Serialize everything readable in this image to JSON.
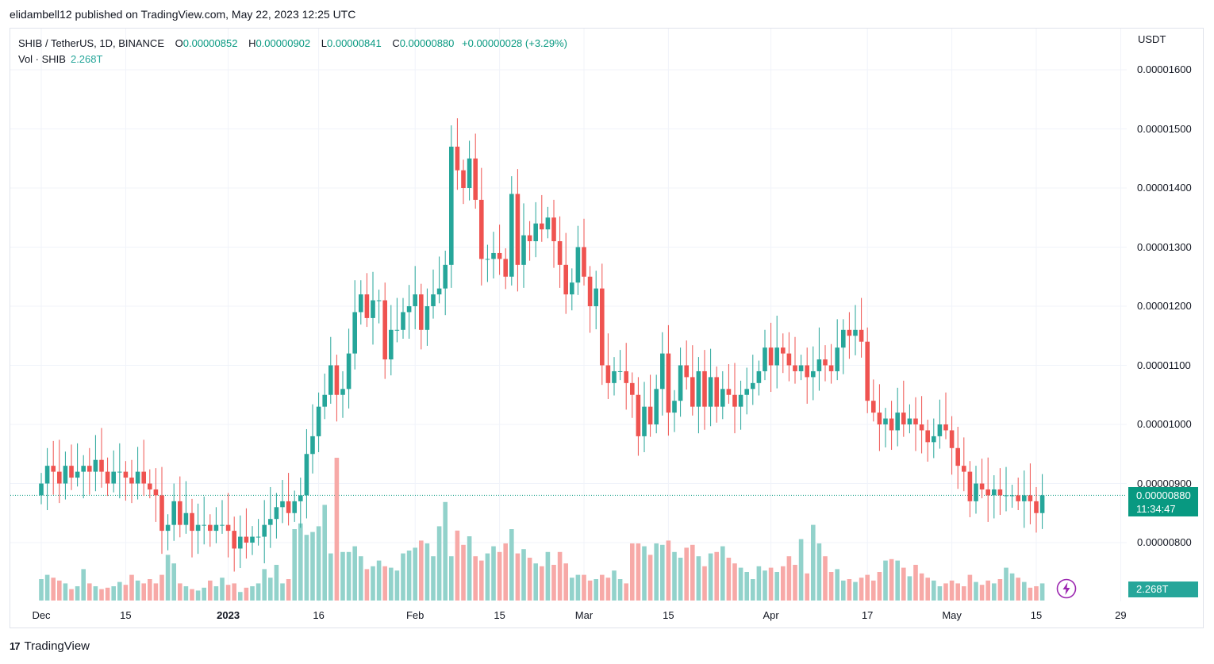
{
  "publish_line": "elidambell12 published on TradingView.com, May 22, 2023 12:25 UTC",
  "legend": {
    "symbol": "SHIB / TetherUS, 1D, BINANCE",
    "open_label": "O",
    "open": "0.00000852",
    "high_label": "H",
    "high": "0.00000902",
    "low_label": "L",
    "low": "0.00000841",
    "close_label": "C",
    "close": "0.00000880",
    "change": "+0.00000028 (+3.29%)",
    "vol_label": "Vol · SHIB",
    "vol_value": "2.268T"
  },
  "axis": {
    "unit": "USDT",
    "last_price": "0.00000880",
    "countdown": "11:34:47",
    "last_volume": "2.268T"
  },
  "brand": {
    "logo_text": "17",
    "name": "TradingView"
  },
  "colors": {
    "up": "#26a69a",
    "down": "#ef5350",
    "vol_up": "#92d2cb",
    "vol_down": "#f7a9a7",
    "grid": "#f0f3fa"
  },
  "icons": {
    "flash": "flash-icon",
    "logo": "tradingview-logo-icon"
  },
  "chart_data": {
    "type": "candlestick",
    "title": "SHIB / TetherUS, 1D, BINANCE",
    "ylabel": "USDT",
    "ylim": [
      7.3e-06,
      1.62e-05
    ],
    "y_ticks": [
      "0.00000800",
      "0.00000900",
      "0.00001000",
      "0.00001100",
      "0.00001200",
      "0.00001300",
      "0.00001400",
      "0.00001500",
      "0.00001600"
    ],
    "x_ticks": [
      {
        "label": "Dec",
        "day": 0,
        "bold": false
      },
      {
        "label": "15",
        "day": 14,
        "bold": false
      },
      {
        "label": "2023",
        "day": 31,
        "bold": true
      },
      {
        "label": "16",
        "day": 46,
        "bold": false
      },
      {
        "label": "Feb",
        "day": 62,
        "bold": false
      },
      {
        "label": "15",
        "day": 76,
        "bold": false
      },
      {
        "label": "Mar",
        "day": 90,
        "bold": false
      },
      {
        "label": "15",
        "day": 104,
        "bold": false
      },
      {
        "label": "Apr",
        "day": 121,
        "bold": false
      },
      {
        "label": "17",
        "day": 137,
        "bold": false
      },
      {
        "label": "May",
        "day": 151,
        "bold": false
      },
      {
        "label": "15",
        "day": 165,
        "bold": false
      },
      {
        "label": "29",
        "day": 179,
        "bold": false
      }
    ],
    "x_start": "2022-11-26",
    "last_price_line": 8.8e-06,
    "closes": [
      9e-06,
      9.3e-06,
      9.2e-06,
      9e-06,
      9.3e-06,
      9.1e-06,
      9.2e-06,
      9.3e-06,
      9.2e-06,
      9.4e-06,
      9.2e-06,
      9e-06,
      9.2e-06,
      9.2e-06,
      9.1e-06,
      9e-06,
      9.2e-06,
      9e-06,
      8.9e-06,
      8.8e-06,
      8.2e-06,
      8.3e-06,
      8.7e-06,
      8.3e-06,
      8.5e-06,
      8.2e-06,
      8.3e-06,
      8.3e-06,
      8.2e-06,
      8.3e-06,
      8.3e-06,
      8.2e-06,
      7.9e-06,
      8.1e-06,
      8e-06,
      8.1e-06,
      8.1e-06,
      8.3e-06,
      8.4e-06,
      8.6e-06,
      8.7e-06,
      8.5e-06,
      8.7e-06,
      8.8e-06,
      9.5e-06,
      9.8e-06,
      1.03e-05,
      1.05e-05,
      1.1e-05,
      1.05e-05,
      1.06e-05,
      1.12e-05,
      1.19e-05,
      1.22e-05,
      1.18e-05,
      1.21e-05,
      1.21e-05,
      1.11e-05,
      1.16e-05,
      1.16e-05,
      1.19e-05,
      1.2e-05,
      1.22e-05,
      1.16e-05,
      1.2e-05,
      1.22e-05,
      1.23e-05,
      1.27e-05,
      1.47e-05,
      1.43e-05,
      1.4e-05,
      1.45e-05,
      1.38e-05,
      1.28e-05,
      1.28e-05,
      1.29e-05,
      1.28e-05,
      1.25e-05,
      1.39e-05,
      1.27e-05,
      1.32e-05,
      1.31e-05,
      1.34e-05,
      1.33e-05,
      1.35e-05,
      1.31e-05,
      1.27e-05,
      1.22e-05,
      1.24e-05,
      1.3e-05,
      1.25e-05,
      1.2e-05,
      1.23e-05,
      1.1e-05,
      1.07e-05,
      1.09e-05,
      1.09e-05,
      1.07e-05,
      1.05e-05,
      9.8e-06,
      1.03e-05,
      1e-05,
      1.06e-05,
      1.12e-05,
      1.02e-05,
      1.04e-05,
      1.1e-05,
      1.08e-05,
      1.03e-05,
      1.09e-05,
      1.03e-05,
      1.08e-05,
      1.03e-05,
      1.06e-05,
      1.05e-05,
      1.03e-05,
      1.05e-05,
      1.06e-05,
      1.07e-05,
      1.09e-05,
      1.13e-05,
      1.1e-05,
      1.13e-05,
      1.12e-05,
      1.1e-05,
      1.09e-05,
      1.1e-05,
      1.08e-05,
      1.09e-05,
      1.11e-05,
      1.1e-05,
      1.09e-05,
      1.13e-05,
      1.16e-05,
      1.15e-05,
      1.16e-05,
      1.14e-05,
      1.04e-05,
      1.02e-05,
      1e-05,
      1.01e-05,
      9.9e-06,
      1.02e-05,
      1e-05,
      1.01e-05,
      1e-05,
      9.9e-06,
      9.7e-06,
      9.8e-06,
      1e-05,
      9.9e-06,
      9.6e-06,
      9.3e-06,
      9.2e-06,
      8.7e-06,
      9e-06,
      8.9e-06,
      8.8e-06,
      8.9e-06,
      8.8e-06,
      8.8e-06,
      8.8e-06,
      8.7e-06,
      8.8e-06,
      8.7e-06,
      8.5e-06,
      8.8e-06
    ],
    "volumes": [
      0.15,
      0.18,
      0.16,
      0.14,
      0.12,
      0.08,
      0.1,
      0.22,
      0.12,
      0.1,
      0.08,
      0.09,
      0.1,
      0.13,
      0.11,
      0.18,
      0.14,
      0.12,
      0.15,
      0.12,
      0.18,
      0.32,
      0.26,
      0.12,
      0.1,
      0.08,
      0.07,
      0.09,
      0.14,
      0.1,
      0.16,
      0.11,
      0.12,
      0.06,
      0.09,
      0.1,
      0.12,
      0.22,
      0.16,
      0.25,
      0.12,
      0.15,
      0.5,
      0.54,
      0.46,
      0.48,
      0.52,
      0.67,
      0.33,
      1.0,
      0.34,
      0.34,
      0.38,
      0.31,
      0.22,
      0.24,
      0.28,
      0.24,
      0.23,
      0.21,
      0.33,
      0.35,
      0.37,
      0.42,
      0.4,
      0.31,
      0.52,
      0.69,
      0.31,
      0.49,
      0.39,
      0.45,
      0.31,
      0.28,
      0.33,
      0.38,
      0.34,
      0.4,
      0.5,
      0.33,
      0.36,
      0.3,
      0.26,
      0.24,
      0.34,
      0.25,
      0.34,
      0.26,
      0.16,
      0.18,
      0.18,
      0.14,
      0.15,
      0.18,
      0.16,
      0.21,
      0.15,
      0.12,
      0.4,
      0.4,
      0.38,
      0.32,
      0.4,
      0.39,
      0.42,
      0.34,
      0.3,
      0.37,
      0.39,
      0.31,
      0.24,
      0.33,
      0.34,
      0.38,
      0.3,
      0.26,
      0.23,
      0.2,
      0.15,
      0.24,
      0.21,
      0.23,
      0.2,
      0.24,
      0.31,
      0.25,
      0.43,
      0.19,
      0.53,
      0.4,
      0.31,
      0.2,
      0.22,
      0.14,
      0.15,
      0.13,
      0.16,
      0.18,
      0.14,
      0.2,
      0.28,
      0.29,
      0.28,
      0.23,
      0.17,
      0.25,
      0.19,
      0.16,
      0.14,
      0.1,
      0.12,
      0.14,
      0.12,
      0.1,
      0.18,
      0.13,
      0.11,
      0.14,
      0.12,
      0.15,
      0.23,
      0.19,
      0.16,
      0.13,
      0.09,
      0.1,
      0.12
    ]
  }
}
